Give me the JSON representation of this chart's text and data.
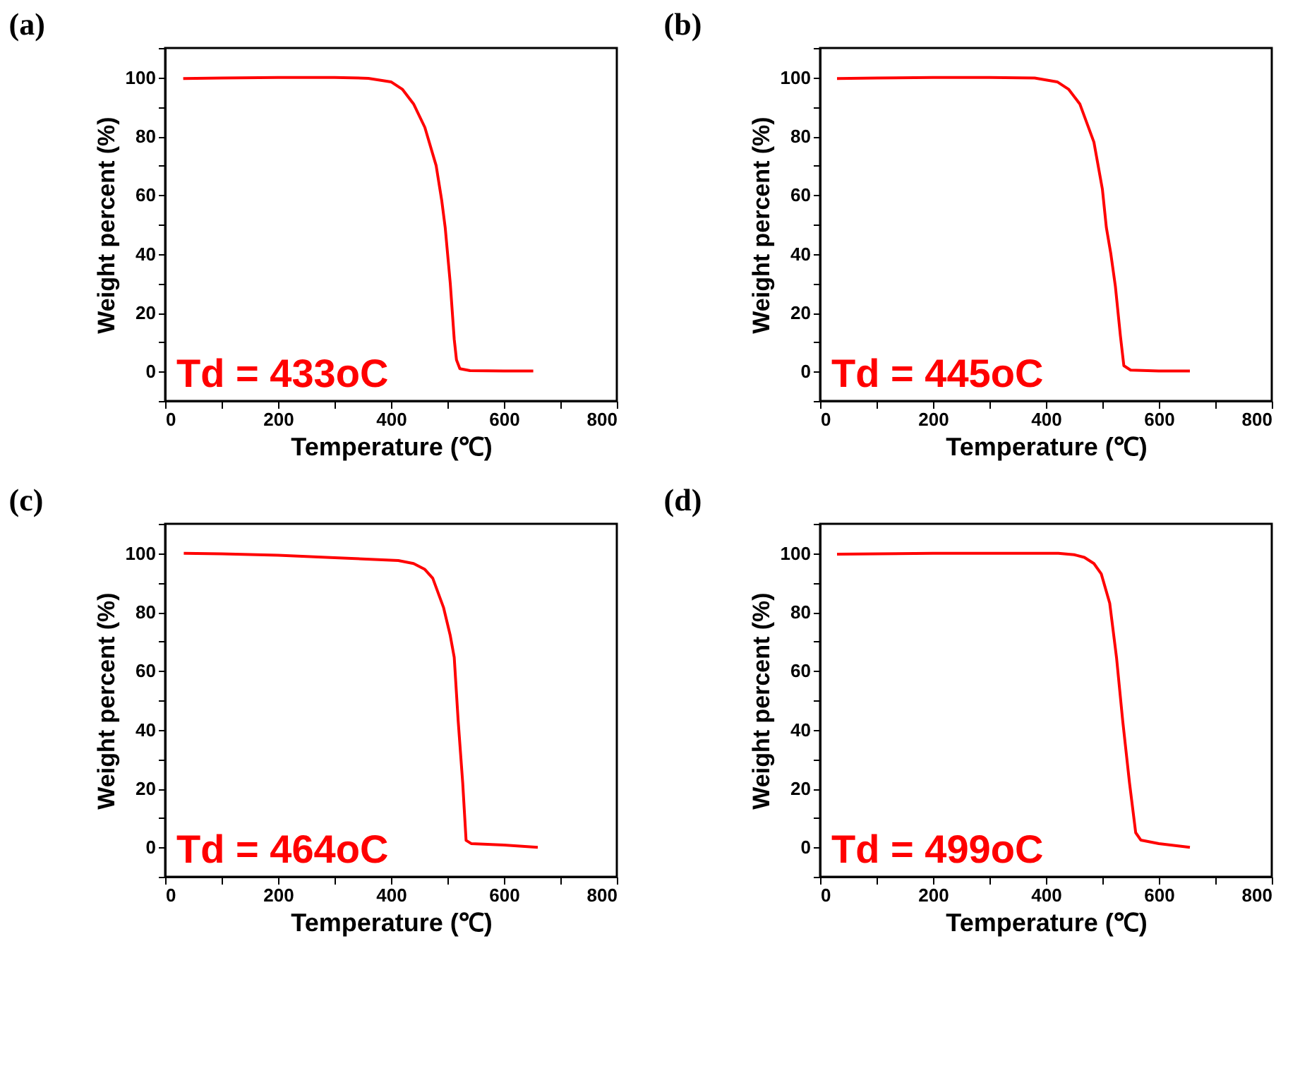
{
  "chart_data": [
    {
      "type": "line",
      "title": "(a)",
      "xlabel": "Temperature (℃)",
      "ylabel": "Weight percent (%)",
      "annotations": [
        "Td = 433oC"
      ],
      "xlim": [
        0,
        800
      ],
      "ylim": [
        -10,
        110
      ],
      "xticks": [
        0,
        {
          "value": 100,
          "label": null
        },
        200,
        {
          "value": 300,
          "label": null
        },
        400,
        {
          "value": 500,
          "label": null
        },
        600,
        {
          "value": 700,
          "label": null
        },
        800
      ],
      "yticks": [
        {
          "value": -10,
          "label": null
        },
        0,
        {
          "value": 10,
          "label": null
        },
        20,
        {
          "value": 30,
          "label": null
        },
        40,
        {
          "value": 50,
          "label": null
        },
        60,
        {
          "value": 70,
          "label": null
        },
        80,
        {
          "value": 90,
          "label": null
        },
        100,
        {
          "value": 110,
          "label": null
        }
      ],
      "grid": false,
      "line_style": "solid",
      "series": [
        {
          "color": "#ff0000",
          "x": [
            32,
            100,
            200,
            300,
            360,
            400,
            420,
            440,
            460,
            480,
            490,
            496,
            505,
            512,
            516,
            522,
            540,
            600,
            652
          ],
          "values": [
            99.6,
            99.8,
            100,
            100,
            99.7,
            98.5,
            96,
            91,
            83,
            70,
            58,
            49,
            30,
            11,
            4,
            1,
            0.3,
            0.2,
            0.2
          ]
        }
      ]
    },
    {
      "type": "line",
      "title": "(b)",
      "xlabel": "Temperature (℃)",
      "ylabel": "Weight percent (%)",
      "annotations": [
        "Td = 445oC"
      ],
      "xlim": [
        0,
        800
      ],
      "ylim": [
        -10,
        110
      ],
      "xticks": [
        0,
        {
          "value": 100,
          "label": null
        },
        200,
        {
          "value": 300,
          "label": null
        },
        400,
        {
          "value": 500,
          "label": null
        },
        600,
        {
          "value": 700,
          "label": null
        },
        800
      ],
      "yticks": [
        {
          "value": -10,
          "label": null
        },
        0,
        {
          "value": 10,
          "label": null
        },
        20,
        {
          "value": 30,
          "label": null
        },
        40,
        {
          "value": 50,
          "label": null
        },
        60,
        {
          "value": 70,
          "label": null
        },
        80,
        {
          "value": 90,
          "label": null
        },
        100,
        {
          "value": 110,
          "label": null
        }
      ],
      "grid": false,
      "line_style": "solid",
      "series": [
        {
          "color": "#ff0000",
          "x": [
            30,
            100,
            200,
            300,
            380,
            420,
            440,
            460,
            485,
            500,
            507,
            515,
            523,
            532,
            538,
            550,
            600,
            655
          ],
          "values": [
            99.6,
            99.8,
            100,
            100,
            99.8,
            98.5,
            96,
            91,
            78,
            62,
            49,
            40,
            29,
            12,
            2,
            0.5,
            0.2,
            0.2
          ]
        }
      ]
    },
    {
      "type": "line",
      "title": "(c)",
      "xlabel": "Temperature (℃)",
      "ylabel": "Weight percent (%)",
      "annotations": [
        "Td = 464oC"
      ],
      "xlim": [
        0,
        800
      ],
      "ylim": [
        -10,
        110
      ],
      "xticks": [
        0,
        {
          "value": 100,
          "label": null
        },
        200,
        {
          "value": 300,
          "label": null
        },
        400,
        {
          "value": 500,
          "label": null
        },
        600,
        {
          "value": 700,
          "label": null
        },
        800
      ],
      "yticks": [
        {
          "value": -10,
          "label": null
        },
        0,
        {
          "value": 10,
          "label": null
        },
        20,
        {
          "value": 30,
          "label": null
        },
        40,
        {
          "value": 50,
          "label": null
        },
        60,
        {
          "value": 70,
          "label": null
        },
        80,
        {
          "value": 90,
          "label": null
        },
        100,
        {
          "value": 110,
          "label": null
        }
      ],
      "grid": false,
      "line_style": "solid",
      "series": [
        {
          "color": "#ff0000",
          "x": [
            33,
            100,
            200,
            300,
            413,
            440,
            460,
            474,
            493,
            505,
            512,
            519,
            527,
            533,
            542,
            600,
            660
          ],
          "values": [
            100,
            99.8,
            99.3,
            98.5,
            97.5,
            96.5,
            94.5,
            91.5,
            81.6,
            72,
            64.6,
            43,
            22,
            2.4,
            1.3,
            0.8,
            0
          ]
        }
      ]
    },
    {
      "type": "line",
      "title": "(d)",
      "xlabel": "Temperature (℃)",
      "ylabel": "Weight percent (%)",
      "annotations": [
        "Td = 499oC"
      ],
      "xlim": [
        0,
        800
      ],
      "ylim": [
        -10,
        110
      ],
      "xticks": [
        0,
        {
          "value": 100,
          "label": null
        },
        200,
        {
          "value": 300,
          "label": null
        },
        400,
        {
          "value": 500,
          "label": null
        },
        600,
        {
          "value": 700,
          "label": null
        },
        800
      ],
      "yticks": [
        {
          "value": -10,
          "label": null
        },
        0,
        {
          "value": 10,
          "label": null
        },
        20,
        {
          "value": 30,
          "label": null
        },
        40,
        {
          "value": 50,
          "label": null
        },
        60,
        {
          "value": 70,
          "label": null
        },
        80,
        {
          "value": 90,
          "label": null
        },
        100,
        {
          "value": 110,
          "label": null
        }
      ],
      "grid": false,
      "line_style": "solid",
      "series": [
        {
          "color": "#ff0000",
          "x": [
            30,
            100,
            200,
            300,
            422,
            450,
            468,
            485,
            498,
            513,
            525,
            536,
            548,
            559,
            568,
            600,
            655
          ],
          "values": [
            99.7,
            99.8,
            100,
            100,
            100,
            99.5,
            98.6,
            96.5,
            93,
            83,
            64.6,
            43,
            22,
            5,
            2.5,
            1.3,
            0
          ]
        }
      ]
    }
  ]
}
